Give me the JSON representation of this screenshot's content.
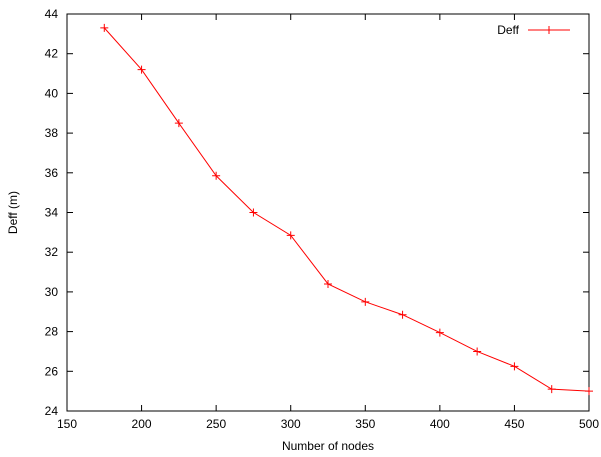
{
  "chart_data": {
    "type": "line",
    "title": "",
    "xlabel": "Number of nodes",
    "ylabel": "Deff (m)",
    "xlim": [
      150,
      500
    ],
    "ylim": [
      24,
      44
    ],
    "xticks": [
      150,
      200,
      250,
      300,
      350,
      400,
      450,
      500
    ],
    "yticks": [
      24,
      26,
      28,
      30,
      32,
      34,
      36,
      38,
      40,
      42,
      44
    ],
    "grid": false,
    "legend": "top-right",
    "series": [
      {
        "name": "Deff",
        "color": "#ff0000",
        "marker": "plus",
        "x": [
          175,
          200,
          225,
          250,
          275,
          300,
          325,
          350,
          375,
          400,
          425,
          450,
          475,
          500
        ],
        "y": [
          43.3,
          41.2,
          38.5,
          35.85,
          34.0,
          32.85,
          30.4,
          29.5,
          28.85,
          27.95,
          27.0,
          26.25,
          25.1,
          25.0
        ]
      }
    ]
  }
}
